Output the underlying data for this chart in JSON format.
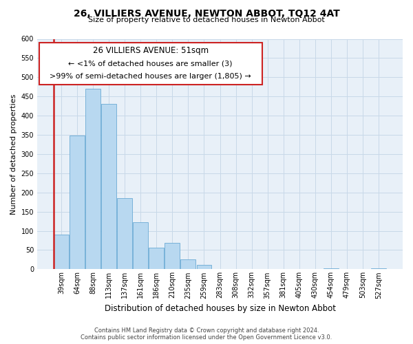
{
  "title": "26, VILLIERS AVENUE, NEWTON ABBOT, TQ12 4AT",
  "subtitle": "Size of property relative to detached houses in Newton Abbot",
  "xlabel": "Distribution of detached houses by size in Newton Abbot",
  "ylabel": "Number of detached properties",
  "bar_labels": [
    "39sqm",
    "64sqm",
    "88sqm",
    "113sqm",
    "137sqm",
    "161sqm",
    "186sqm",
    "210sqm",
    "235sqm",
    "259sqm",
    "283sqm",
    "308sqm",
    "332sqm",
    "357sqm",
    "381sqm",
    "405sqm",
    "430sqm",
    "454sqm",
    "479sqm",
    "503sqm",
    "527sqm"
  ],
  "bar_values": [
    90,
    348,
    471,
    430,
    186,
    123,
    57,
    68,
    25,
    12,
    0,
    0,
    0,
    0,
    0,
    0,
    0,
    3,
    0,
    0,
    3
  ],
  "bar_color": "#b8d8f0",
  "bar_edge_color": "#6aaad4",
  "highlight_bar_index": 0,
  "highlight_edge_color": "#cc2222",
  "ylim_max": 600,
  "yticks": [
    0,
    50,
    100,
    150,
    200,
    250,
    300,
    350,
    400,
    450,
    500,
    550,
    600
  ],
  "annotation_title": "26 VILLIERS AVENUE: 51sqm",
  "annotation_line1": "← <1% of detached houses are smaller (3)",
  "annotation_line2": ">99% of semi-detached houses are larger (1,805) →",
  "footer_line1": "Contains HM Land Registry data © Crown copyright and database right 2024.",
  "footer_line2": "Contains public sector information licensed under the Open Government Licence v3.0.",
  "grid_color": "#c8d8e8",
  "background_color": "#e8f0f8",
  "title_fontsize": 10,
  "subtitle_fontsize": 8,
  "ylabel_fontsize": 8,
  "xlabel_fontsize": 8.5,
  "tick_fontsize": 7,
  "annot_title_fontsize": 8.5,
  "annot_text_fontsize": 8,
  "footer_fontsize": 6
}
